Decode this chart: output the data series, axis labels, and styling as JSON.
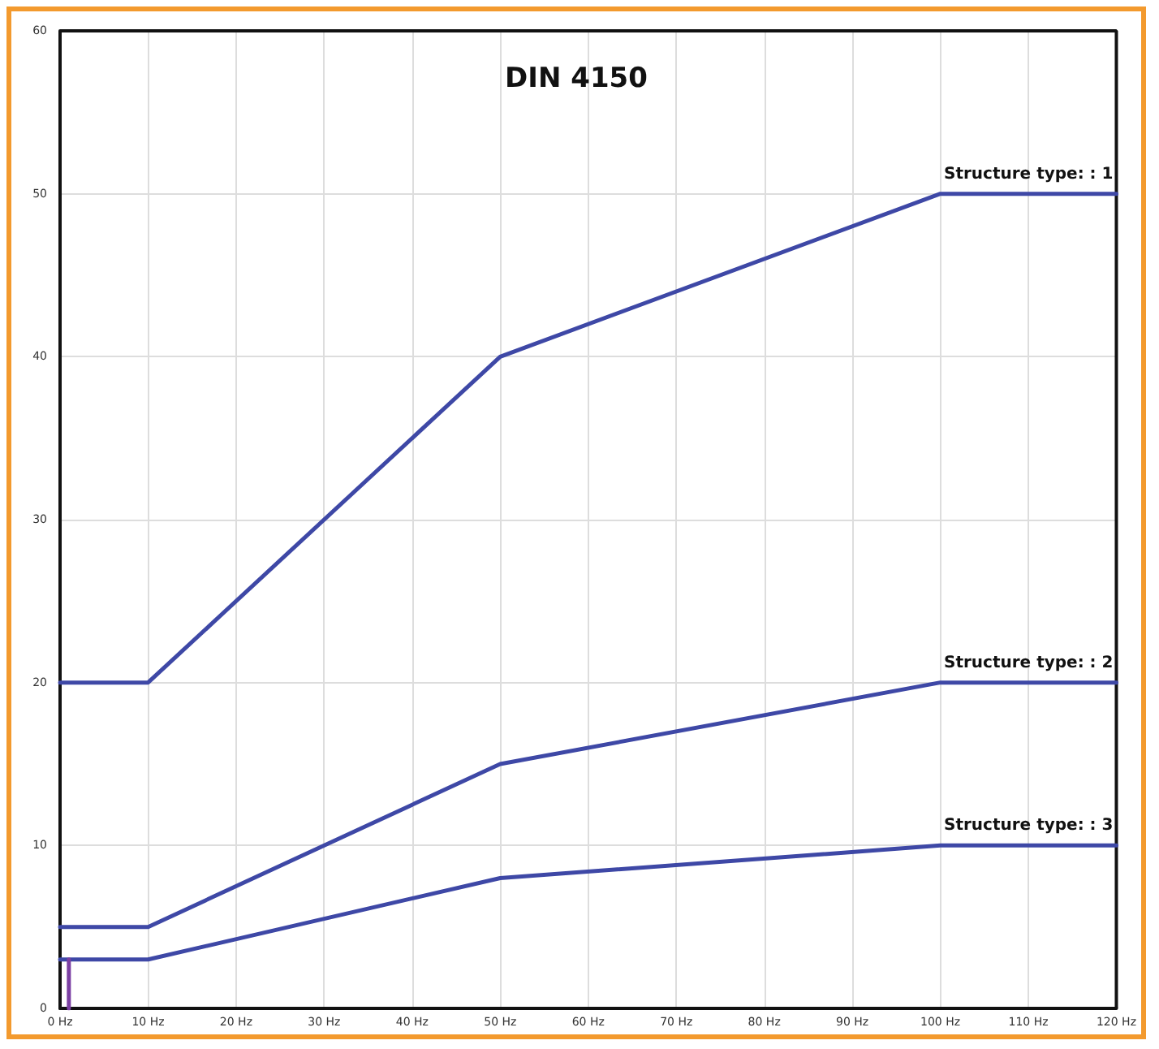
{
  "chart_data": {
    "type": "line",
    "title": "DIN 4150",
    "x": [
      0,
      10,
      50,
      100,
      120
    ],
    "series": [
      {
        "name": "Structure type: : 1",
        "color": "#3e48a6",
        "values": [
          20,
          20,
          40,
          50,
          50
        ]
      },
      {
        "name": "Structure type: : 2",
        "color": "#3e48a6",
        "values": [
          5,
          5,
          15,
          20,
          20
        ]
      },
      {
        "name": "Structure type: : 3",
        "color": "#3e48a6",
        "values": [
          3,
          3,
          8,
          10,
          10
        ]
      },
      {
        "color": "#7b3fa3",
        "x": [
          1,
          1
        ],
        "values": [
          0,
          3
        ]
      }
    ],
    "xlim": [
      0,
      120
    ],
    "xticks": [
      {
        "value": 0,
        "label": "0 Hz"
      },
      {
        "value": 10,
        "label": "10 Hz"
      },
      {
        "value": 20,
        "label": "20 Hz"
      },
      {
        "value": 30,
        "label": "30 Hz"
      },
      {
        "value": 40,
        "label": "40 Hz"
      },
      {
        "value": 50,
        "label": "50 Hz"
      },
      {
        "value": 60,
        "label": "60 Hz"
      },
      {
        "value": 70,
        "label": "70 Hz"
      },
      {
        "value": 80,
        "label": "80 Hz"
      },
      {
        "value": 90,
        "label": "90 Hz"
      },
      {
        "value": 100,
        "label": "100 Hz"
      },
      {
        "value": 110,
        "label": "110 Hz"
      },
      {
        "value": 120,
        "label": "120 Hz"
      }
    ],
    "ylim": [
      0,
      60
    ],
    "yticks": [
      0,
      10,
      20,
      30,
      40,
      50,
      60
    ],
    "grid": true,
    "marker": "none",
    "line_style": "solid"
  }
}
